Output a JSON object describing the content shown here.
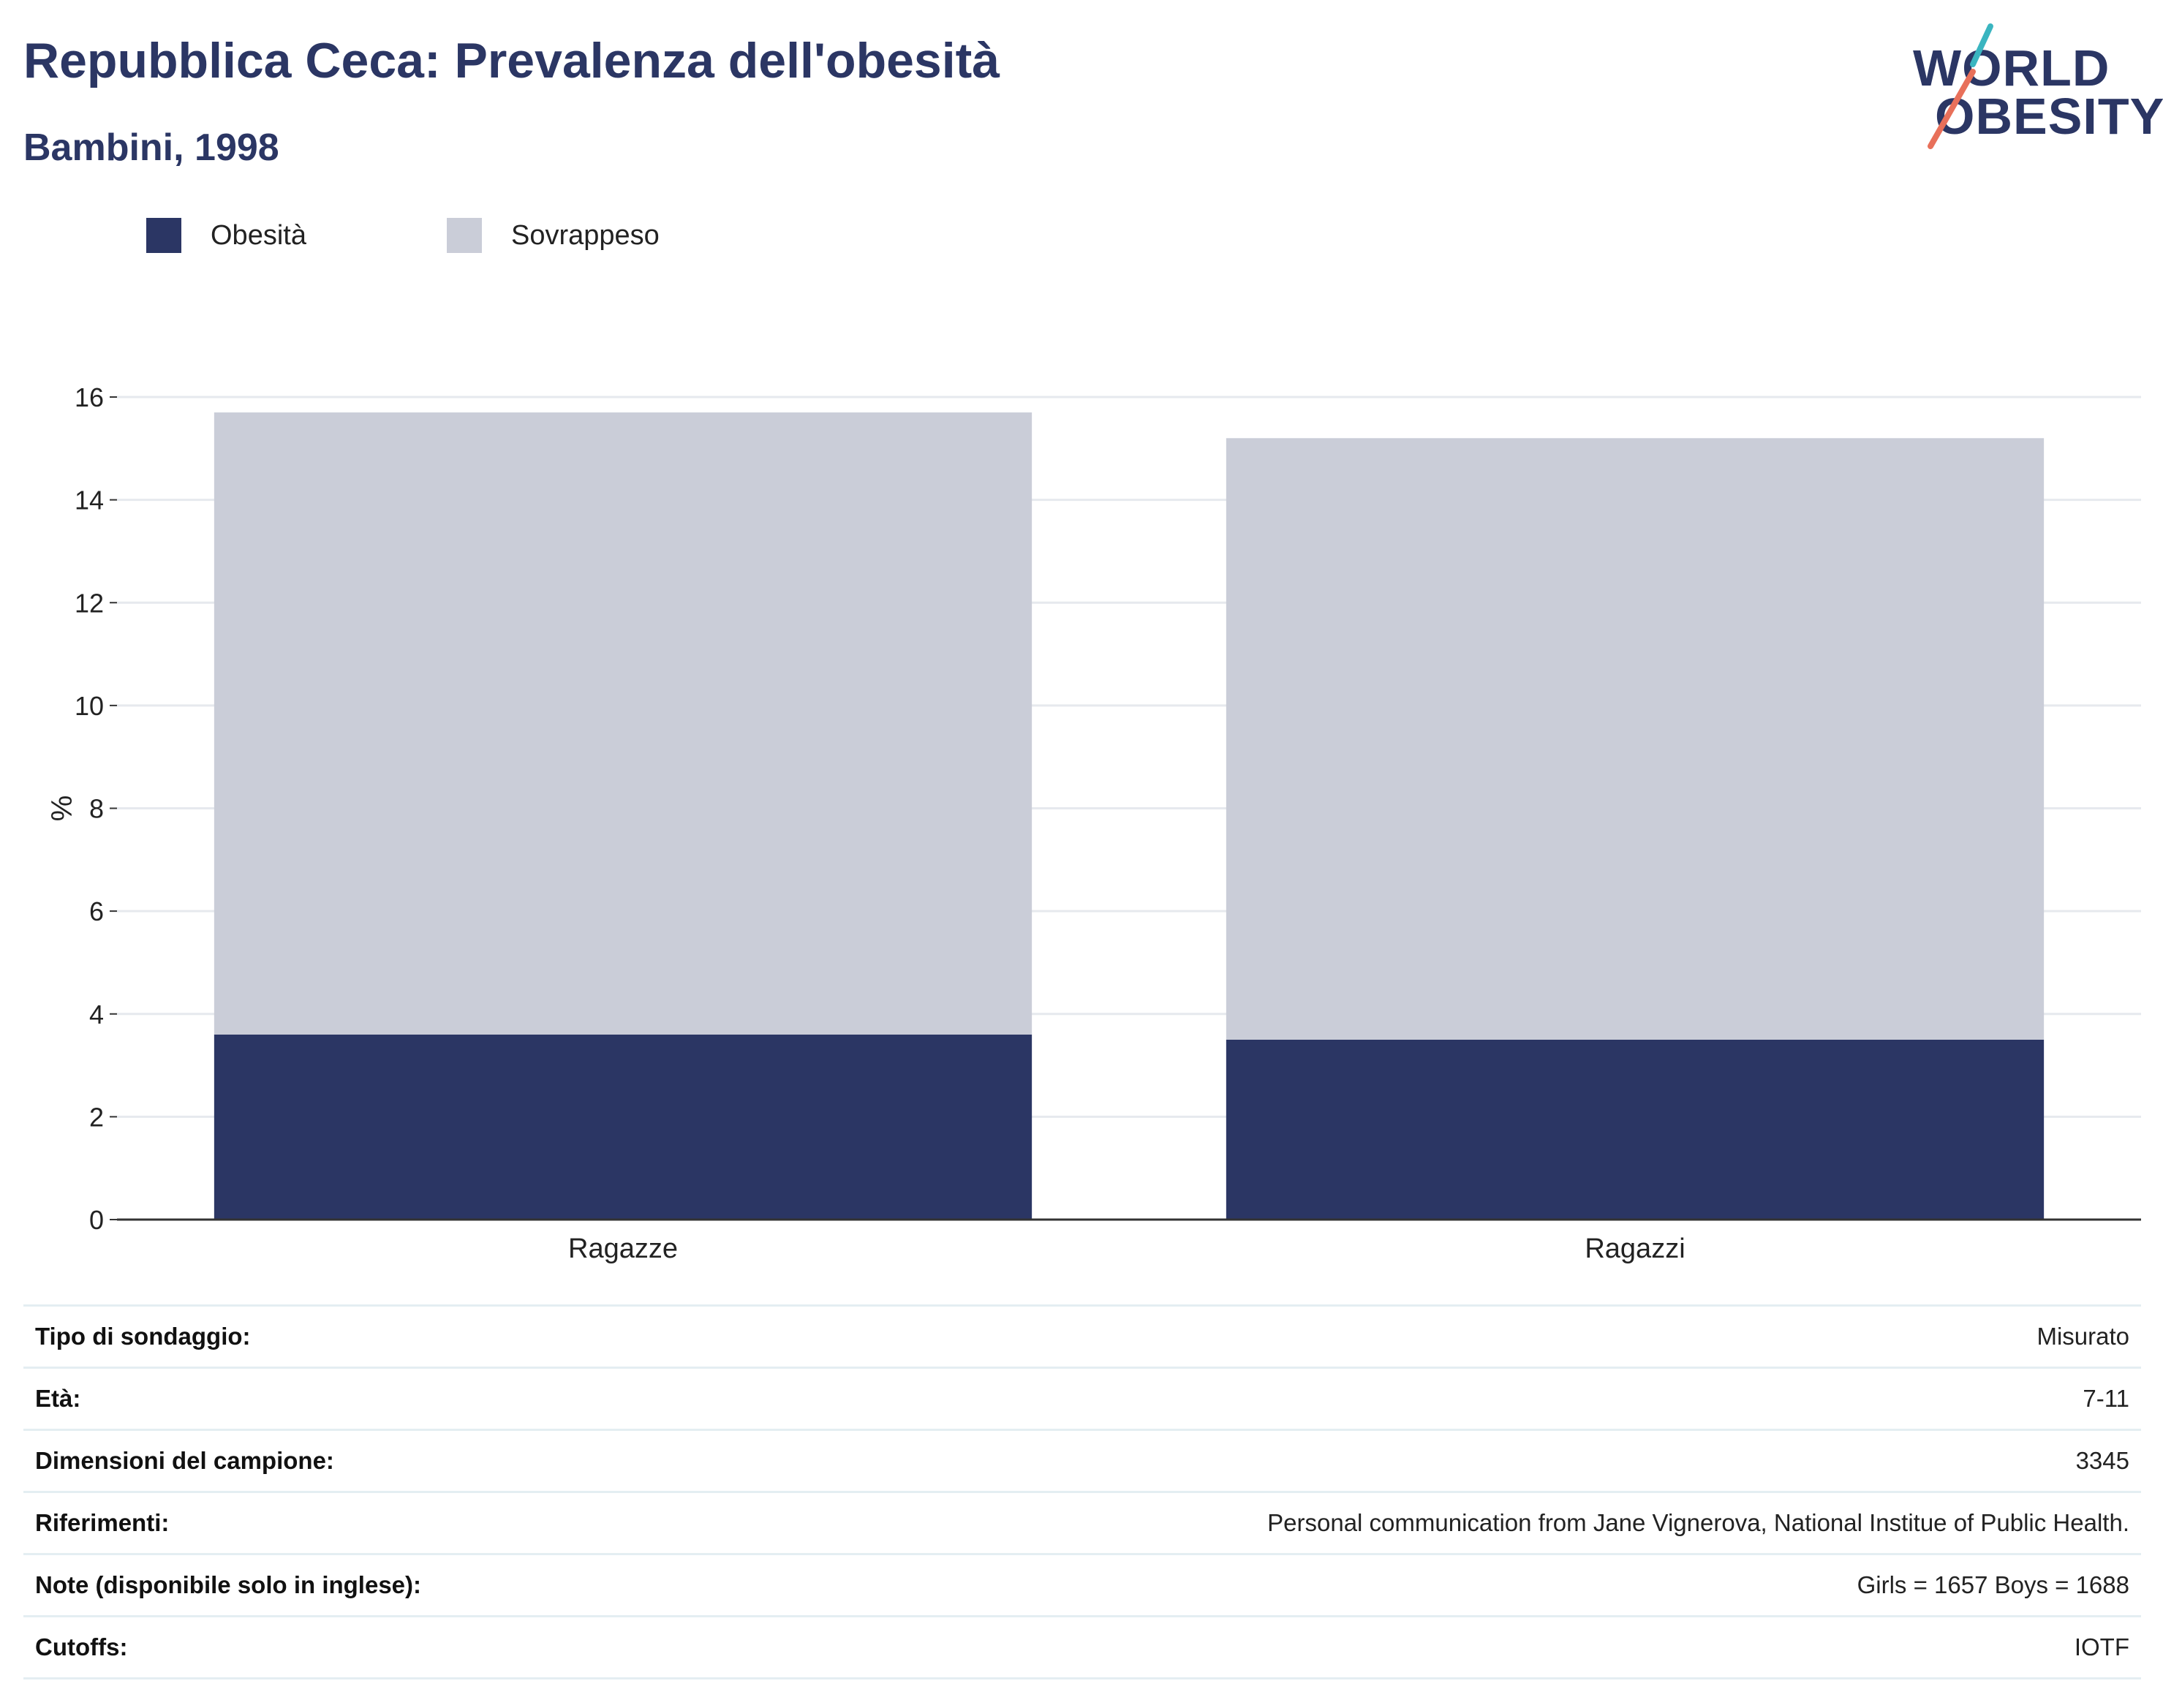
{
  "header": {
    "title": "Repubblica Ceca: Prevalenza dell'obesità",
    "subtitle": "Bambini, 1998"
  },
  "logo": {
    "line1": "WORLD",
    "line2": "OBESITY",
    "colors": [
      "#2b3664",
      "#3ab5c0",
      "#e8705a"
    ]
  },
  "colors": {
    "obesity": "#2b3664",
    "overweight": "#cacdd8",
    "gridline": "#e6e9ee",
    "axis": "#333333"
  },
  "chart_data": {
    "type": "bar",
    "stacked": true,
    "categories": [
      "Ragazze",
      "Ragazzi"
    ],
    "series": [
      {
        "name": "Obesità",
        "values": [
          3.6,
          3.5
        ]
      },
      {
        "name": "Sovrappeso",
        "values": [
          12.1,
          11.7
        ]
      }
    ],
    "ylabel": "%",
    "ylim": [
      0,
      16
    ],
    "yticks": [
      0,
      2,
      4,
      6,
      8,
      10,
      12,
      14,
      16
    ],
    "grid": true,
    "legend_position": "top-left"
  },
  "info_table": [
    {
      "key": "Tipo di sondaggio:",
      "value": "Misurato"
    },
    {
      "key": "Età:",
      "value": "7-11"
    },
    {
      "key": "Dimensioni del campione:",
      "value": "3345"
    },
    {
      "key": "Riferimenti:",
      "value": "Personal communication from Jane Vignerova, National Institue of Public Health."
    },
    {
      "key": "Note (disponibile solo in inglese):",
      "value": "Girls = 1657 Boys = 1688"
    },
    {
      "key": "Cutoffs:",
      "value": "IOTF"
    }
  ]
}
